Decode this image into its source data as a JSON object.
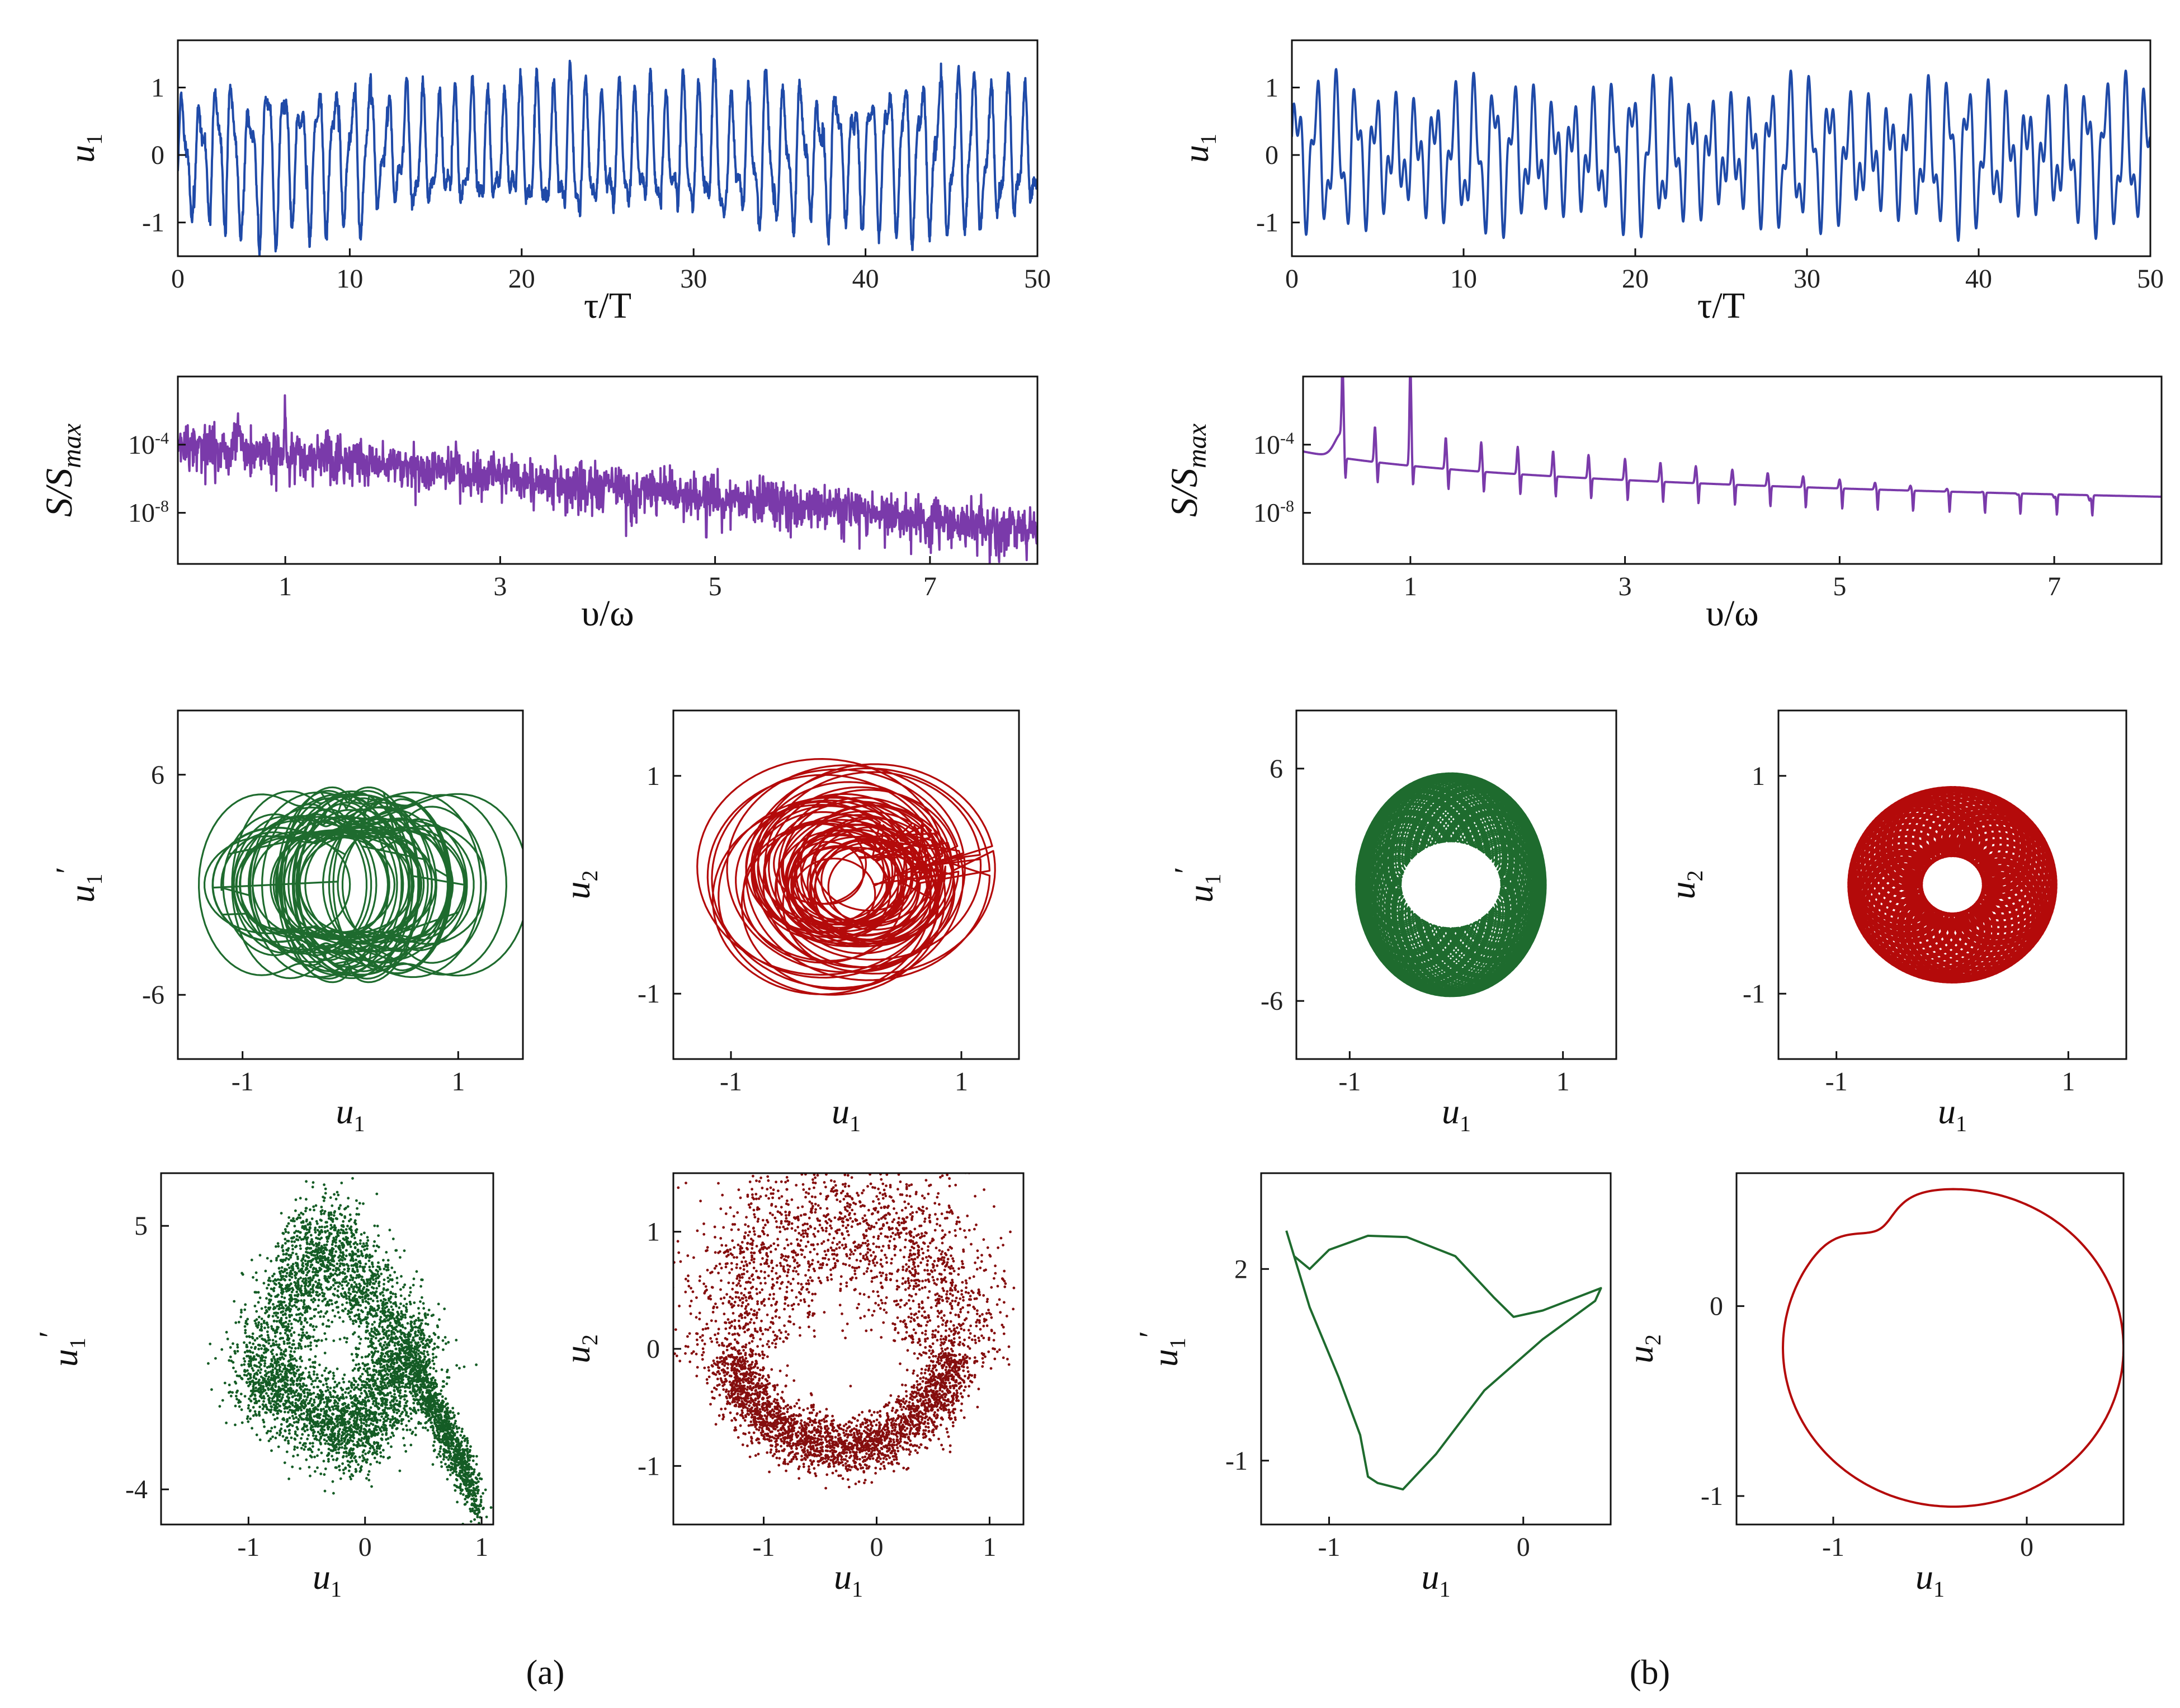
{
  "colors": {
    "timeseries": "#1f4aa8",
    "spectrum": "#7a3aaa",
    "phase_green": "#1e6b2e",
    "phase_red": "#b40a0a",
    "map_green": "#145c25",
    "map_red": "#850e0e",
    "axis": "#111111"
  },
  "panel_labels": {
    "a": "(a)",
    "b": "(b)"
  },
  "labels": {
    "u1": "u",
    "sub1": "1",
    "sub2": "2",
    "prime": "′",
    "tauT": "τ/T",
    "S": "S/S",
    "Smax_sub": "max",
    "nu_omega": "υ/ω",
    "exp_m4": "-4",
    "exp_m8": "-8",
    "ten": "10"
  },
  "chart_data": [
    {
      "id": "a-time",
      "type": "line",
      "title": "",
      "xlabel": "τ/T",
      "ylabel": "u1",
      "xlim": [
        0,
        50
      ],
      "ylim": [
        -1.5,
        1.7
      ],
      "xticks": [
        0,
        10,
        20,
        30,
        40,
        50
      ],
      "yticks": [
        1,
        0,
        -1
      ],
      "series": [
        {
          "name": "u1(τ)",
          "description": "chaotic oscillation"
        }
      ]
    },
    {
      "id": "a-spectrum",
      "type": "line",
      "xlabel": "υ/ω",
      "ylabel": "S/Smax",
      "yscale": "log",
      "xlim": [
        0,
        8
      ],
      "xticks": [
        1,
        3,
        5,
        7
      ],
      "yticks": [
        "10^-4",
        "10^-8"
      ],
      "series": [
        {
          "name": "spectrum",
          "description": "broadband, peaks near 0.55 and 1"
        }
      ]
    },
    {
      "id": "a-phase-u1",
      "type": "line",
      "xlabel": "u1",
      "ylabel": "u1'",
      "xticks": [
        -1,
        1
      ],
      "yticks": [
        6,
        -6
      ]
    },
    {
      "id": "a-phase-u2",
      "type": "line",
      "xlabel": "u1",
      "ylabel": "u2",
      "xticks": [
        -1,
        1
      ],
      "yticks": [
        1,
        -1
      ]
    },
    {
      "id": "a-poincare-u1",
      "type": "scatter",
      "xlabel": "u1",
      "ylabel": "u1'",
      "xticks": [
        -1,
        0,
        1
      ],
      "yticks": [
        5,
        -4
      ]
    },
    {
      "id": "a-poincare-u2",
      "type": "scatter",
      "xlabel": "u1",
      "ylabel": "u2",
      "xticks": [
        -1,
        0,
        1
      ],
      "yticks": [
        1,
        0,
        -1
      ]
    },
    {
      "id": "b-time",
      "type": "line",
      "xlabel": "τ/T",
      "ylabel": "u1",
      "xlim": [
        0,
        50
      ],
      "ylim": [
        -1.5,
        1.7
      ],
      "xticks": [
        0,
        10,
        20,
        30,
        40,
        50
      ],
      "yticks": [
        1,
        0,
        -1
      ],
      "series": [
        {
          "name": "u1(τ)",
          "description": "quasi-periodic oscillation"
        }
      ]
    },
    {
      "id": "b-spectrum",
      "type": "line",
      "xlabel": "υ/ω",
      "ylabel": "S/Smax",
      "yscale": "log",
      "xlim": [
        0,
        8
      ],
      "xticks": [
        1,
        3,
        5,
        7
      ],
      "yticks": [
        "10^-4",
        "10^-8"
      ],
      "series": [
        {
          "name": "spectrum",
          "description": "discrete peaks (quasi-periodic)"
        }
      ]
    },
    {
      "id": "b-phase-u1",
      "type": "line",
      "xlabel": "u1",
      "ylabel": "u1'",
      "xticks": [
        -1,
        1
      ],
      "yticks": [
        6,
        -6
      ]
    },
    {
      "id": "b-phase-u2",
      "type": "line",
      "xlabel": "u1",
      "ylabel": "u2",
      "xticks": [
        -1,
        1
      ],
      "yticks": [
        1,
        -1
      ]
    },
    {
      "id": "b-poincare-u1",
      "type": "line",
      "xlabel": "u1",
      "ylabel": "u1'",
      "xticks": [
        -1,
        0
      ],
      "yticks": [
        2,
        -1
      ]
    },
    {
      "id": "b-poincare-u2",
      "type": "line",
      "xlabel": "u1",
      "ylabel": "u2",
      "xticks": [
        -1,
        0
      ],
      "yticks": [
        0,
        -1
      ]
    }
  ]
}
